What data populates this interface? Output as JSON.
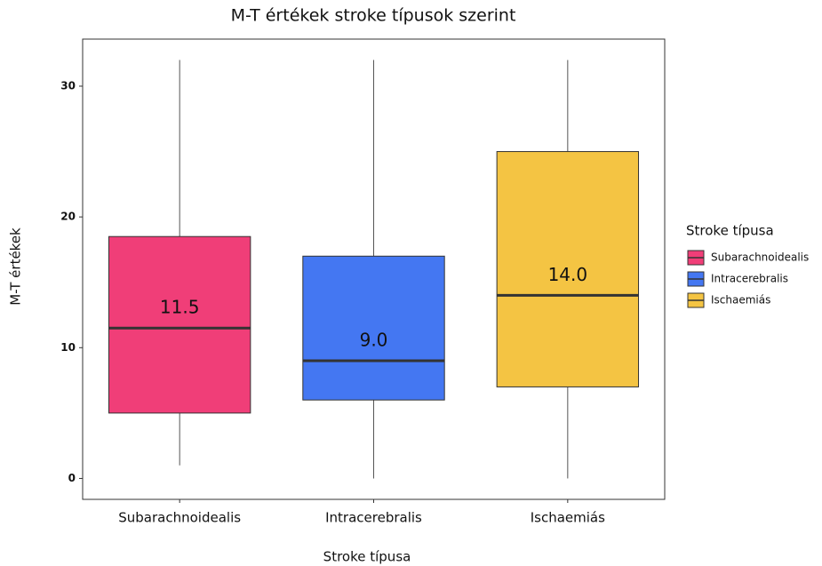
{
  "chart_data": {
    "type": "box",
    "title": "M-T értékek stroke típusok szerint",
    "x_label": "Stroke típusa",
    "y_label": "M-T értékek",
    "legend_title": "Stroke típusa",
    "legend_position": "right",
    "categories": [
      "Subarachnoidealis",
      "Intracerebralis",
      "Ischaemiás"
    ],
    "boxes": [
      {
        "name": "Subarachnoidealis",
        "color": "#f03e78",
        "whisker_low": 1,
        "q1": 5,
        "median": 11.5,
        "q3": 18.5,
        "whisker_high": 32,
        "median_label": "11.5"
      },
      {
        "name": "Intracerebralis",
        "color": "#4477f2",
        "whisker_low": 0,
        "q1": 6,
        "median": 9,
        "q3": 17,
        "whisker_high": 32,
        "median_label": "9.0"
      },
      {
        "name": "Ischaemiás",
        "color": "#f4c443",
        "whisker_low": 0,
        "q1": 7,
        "median": 14,
        "q3": 25,
        "whisker_high": 32,
        "median_label": "14.0"
      }
    ],
    "ylim": [
      -1.6,
      33.6
    ],
    "yticks": [
      0,
      10,
      20,
      30
    ]
  }
}
